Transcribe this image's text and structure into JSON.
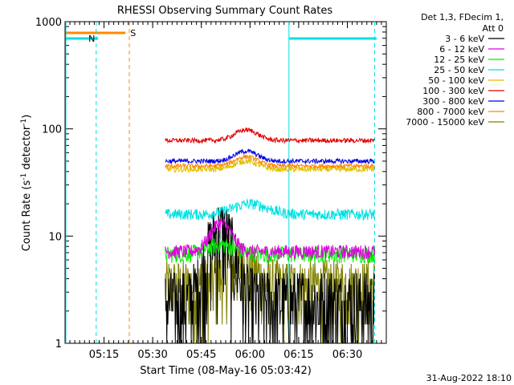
{
  "chart_data": {
    "type": "line",
    "title": "RHESSI Observing Summary Count Rates",
    "xlabel": "Start Time (08-May-16 05:03:42)",
    "ylabel_main": "Count Rate (s",
    "ylabel_sup1": "-1",
    "ylabel_mid": " detector",
    "ylabel_sup2": "-1",
    "ylabel_end": ")",
    "y_scale": "log",
    "ylim": [
      1,
      1000
    ],
    "xlim_minutes": [
      5.05,
      6.7
    ],
    "x_ticks": [
      {
        "t": 5.25,
        "label": "05:15"
      },
      {
        "t": 5.5,
        "label": "05:30"
      },
      {
        "t": 5.75,
        "label": "05:45"
      },
      {
        "t": 6.0,
        "label": "06:00"
      },
      {
        "t": 6.25,
        "label": "06:15"
      },
      {
        "t": 6.5,
        "label": "06:30"
      }
    ],
    "y_ticks": [
      {
        "v": 1,
        "label": "1"
      },
      {
        "v": 10,
        "label": "10"
      },
      {
        "v": 100,
        "label": "100"
      },
      {
        "v": 1000,
        "label": "1000"
      }
    ],
    "legend_header": [
      "Det 1,3, FDecim 1,",
      "Att 0"
    ],
    "legend_placement": "right",
    "series": [
      {
        "name": "3 - 6 keV",
        "color": "#000000",
        "base": 2.5,
        "noise": 0.9,
        "bump": 9,
        "bump_center": 5.85,
        "bump_width": 0.08
      },
      {
        "name": "6 - 12 keV",
        "color": "#e000e0",
        "base": 7.2,
        "noise": 0.15,
        "bump": 6,
        "bump_center": 5.85,
        "bump_width": 0.07
      },
      {
        "name": "12 - 25 keV",
        "color": "#00ee00",
        "base": 6.8,
        "noise": 0.18,
        "bump": 1.5,
        "bump_center": 5.85,
        "bump_width": 0.1
      },
      {
        "name": "25 - 50 keV",
        "color": "#00e0e0",
        "base": 16,
        "noise": 0.12,
        "bump": 4,
        "bump_center": 6.0,
        "bump_width": 0.12
      },
      {
        "name": "50 - 100 keV",
        "color": "#e0c000",
        "base": 42,
        "noise": 0.06,
        "bump": 8,
        "bump_center": 5.98,
        "bump_width": 0.08
      },
      {
        "name": "100 - 300 keV",
        "color": "#e00000",
        "base": 78,
        "noise": 0.05,
        "bump": 20,
        "bump_center": 5.98,
        "bump_width": 0.08
      },
      {
        "name": "300 - 800 keV",
        "color": "#0000e0",
        "base": 50,
        "noise": 0.05,
        "bump": 12,
        "bump_center": 5.98,
        "bump_width": 0.08
      },
      {
        "name": "800 - 7000 keV",
        "color": "#ff8800",
        "base": 45,
        "noise": 0.05,
        "bump": 10,
        "bump_center": 5.98,
        "bump_width": 0.08
      },
      {
        "name": "7000 - 15000 keV",
        "color": "#808000",
        "base": 3.5,
        "noise": 0.7,
        "bump": 2,
        "bump_center": 5.95,
        "bump_width": 0.1
      }
    ],
    "data_start_t": 5.565,
    "data_end_t": 6.64,
    "annotations": [
      {
        "label": "S",
        "color": "#ff8800"
      },
      {
        "label": "N",
        "color": "#00e0e0"
      }
    ],
    "footer_date": "31-Aug-2022 18:10"
  }
}
